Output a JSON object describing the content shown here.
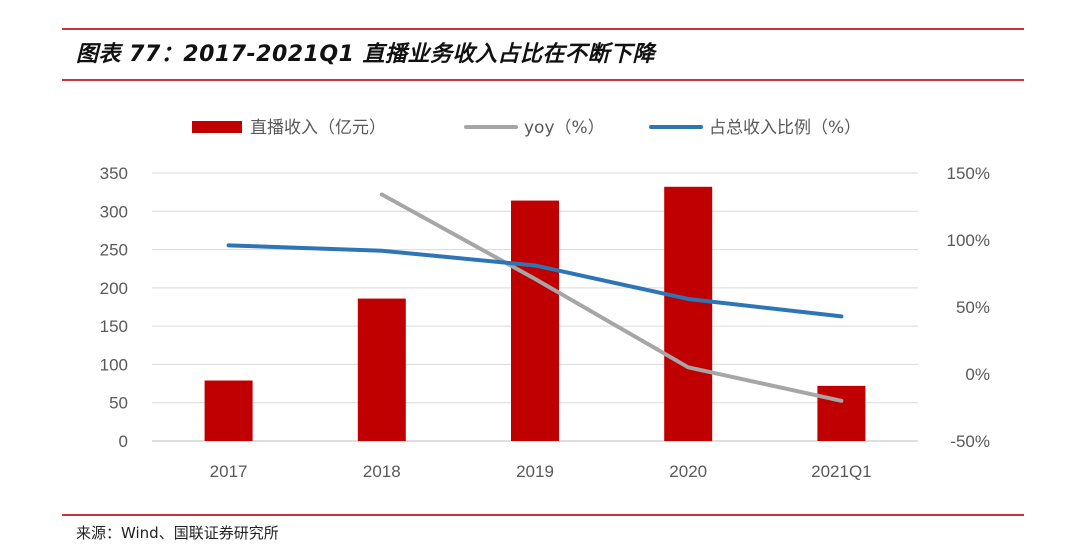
{
  "title": "图表 77：2017-2021Q1 直播业务收入占比在不断下降",
  "source": "来源：Wind、国联证券研究所",
  "chart_data": {
    "type": "bar+line",
    "categories": [
      "2017",
      "2018",
      "2019",
      "2020",
      "2021Q1"
    ],
    "series": [
      {
        "name": "直播收入（亿元）",
        "type": "bar",
        "axis": "left",
        "color": "#c00000",
        "values": [
          79,
          186,
          314,
          332,
          72
        ]
      },
      {
        "name": "yoy（%）",
        "type": "line",
        "axis": "right",
        "color": "#a6a6a6",
        "values": [
          null,
          134,
          71,
          5,
          -20
        ]
      },
      {
        "name": "占总收入比例（%）",
        "type": "line",
        "axis": "right",
        "color": "#2e75b6",
        "values": [
          96,
          92,
          81,
          56,
          43
        ]
      }
    ],
    "left_axis": {
      "ylim": [
        0,
        350
      ],
      "ticks": [
        "0",
        "50",
        "100",
        "150",
        "200",
        "250",
        "300",
        "350"
      ]
    },
    "right_axis": {
      "ylim": [
        -50,
        150
      ],
      "ticks": [
        "-50%",
        "0%",
        "50%",
        "100%",
        "150%"
      ]
    },
    "legend_position": "top",
    "grid": true
  }
}
